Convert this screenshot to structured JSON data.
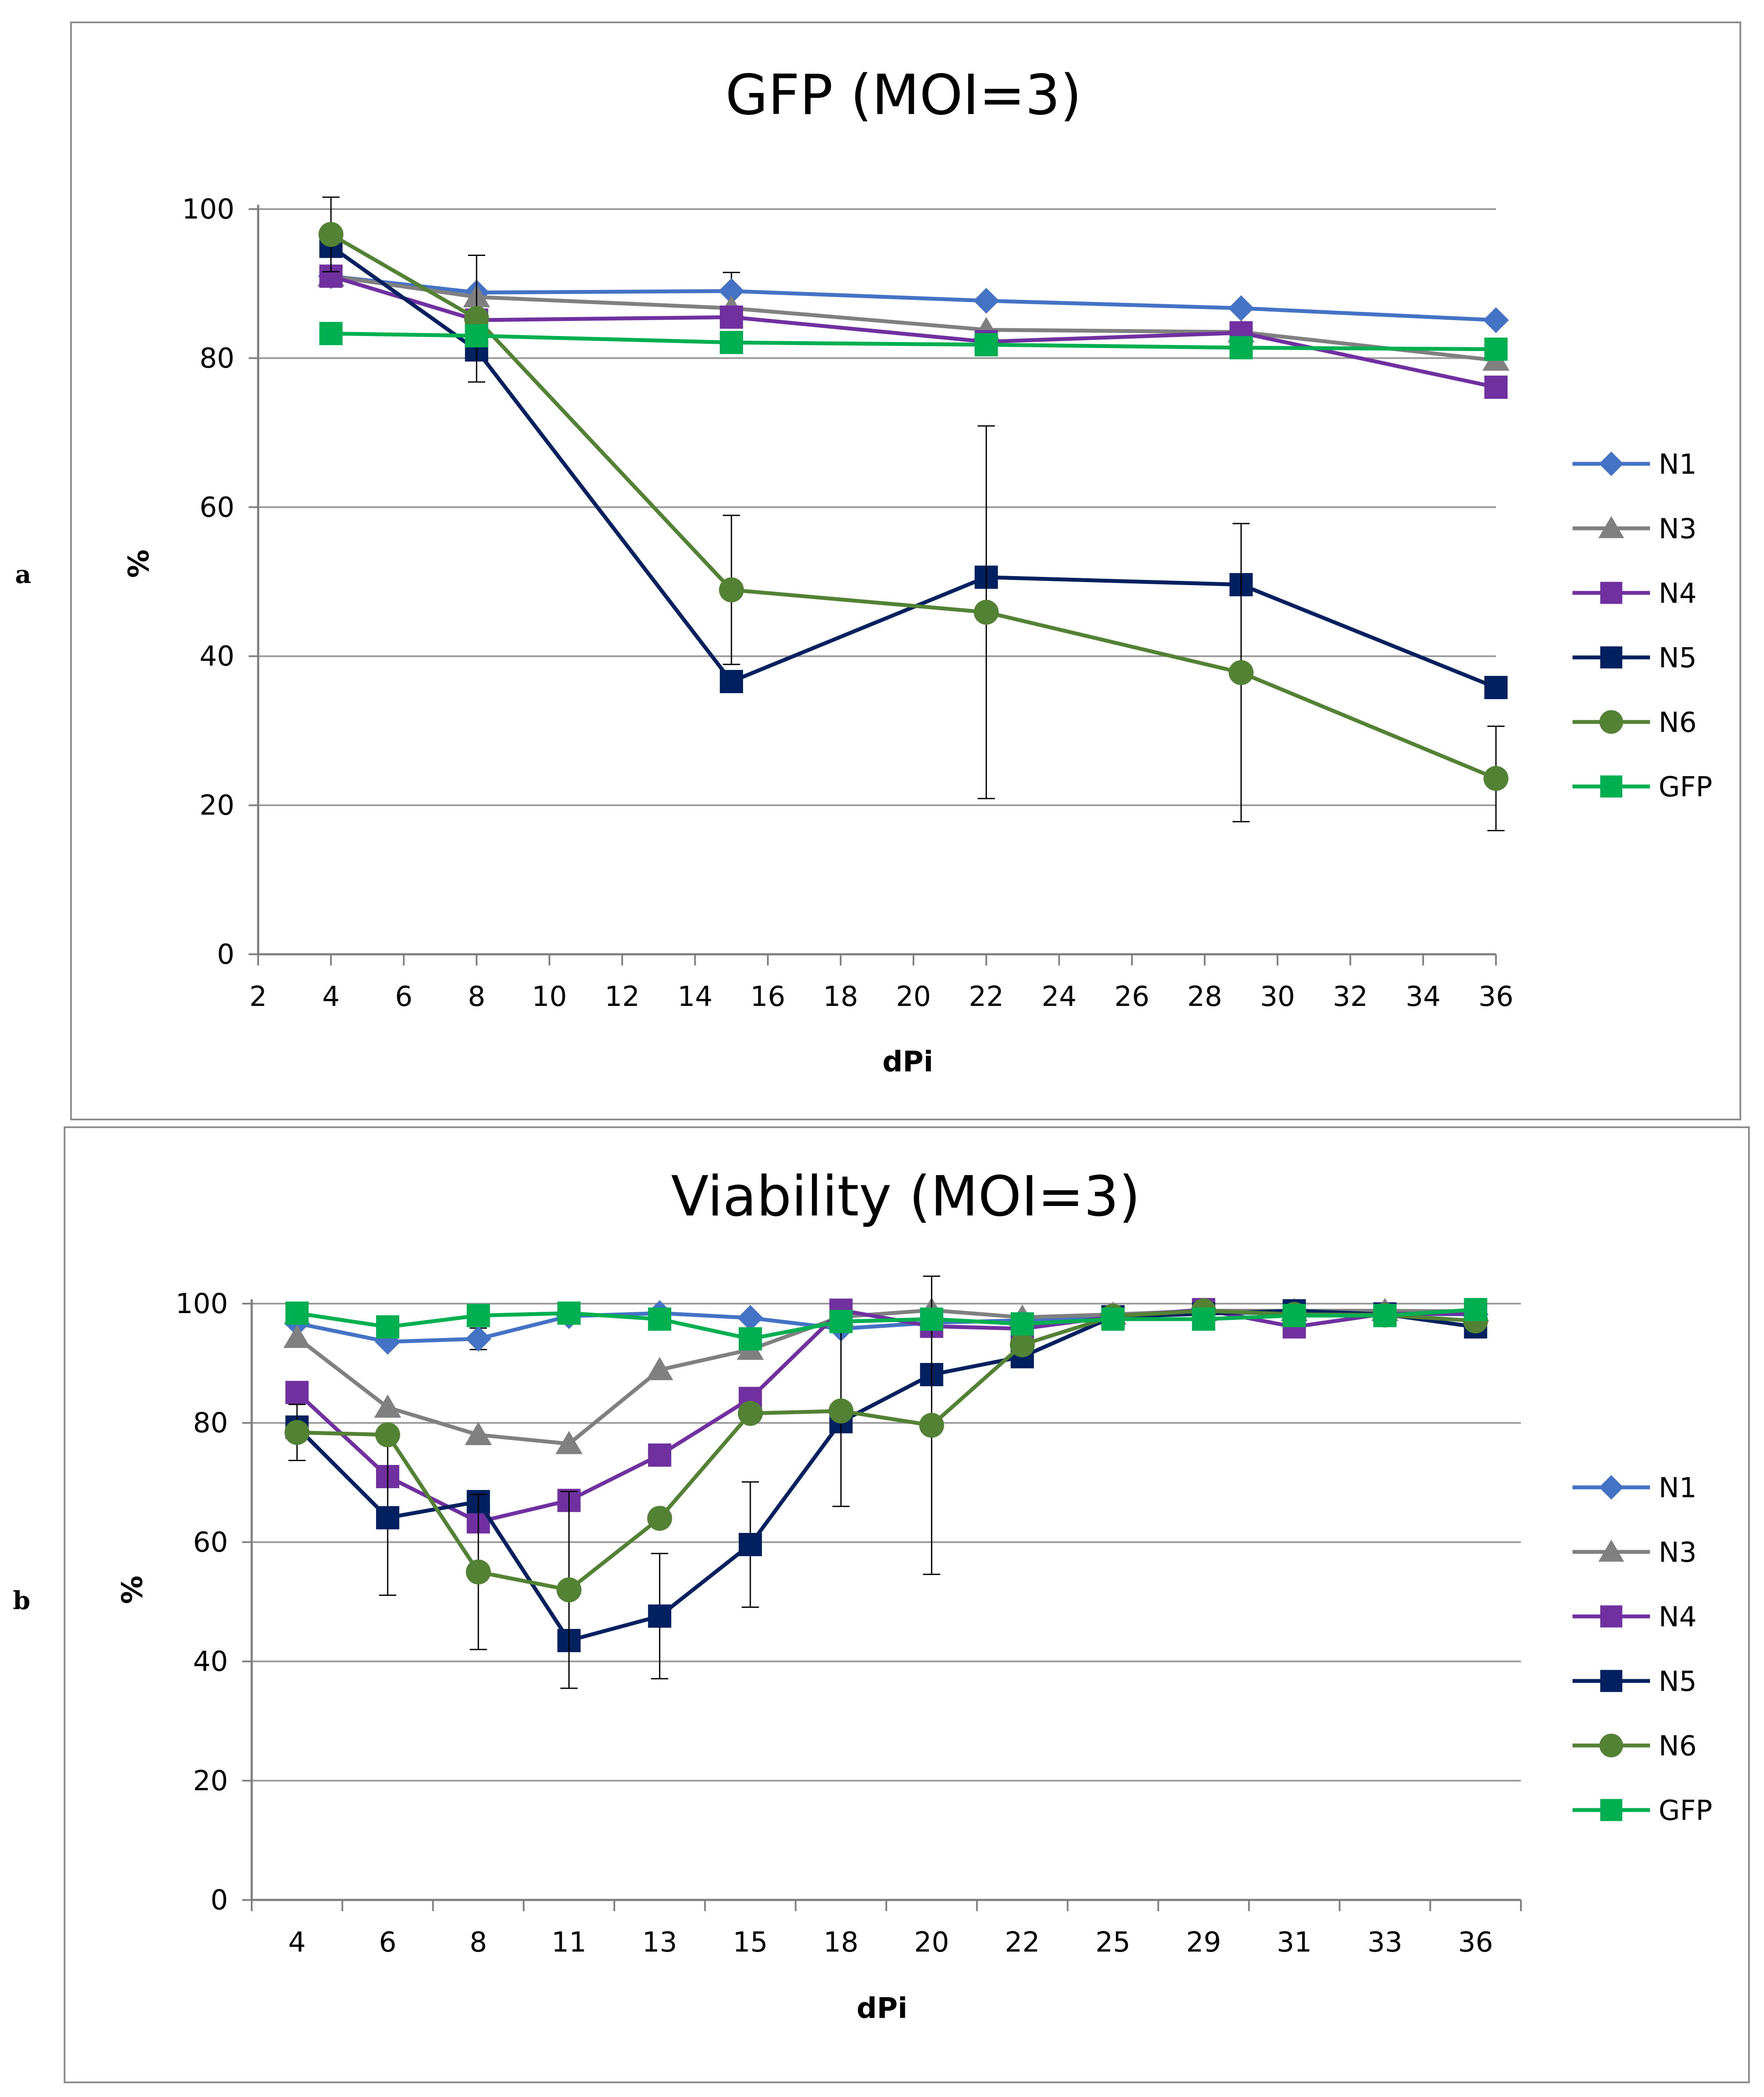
{
  "colors": {
    "N1": "#4472C4",
    "N3": "#808080",
    "N4": "#7030A0",
    "N5": "#002060",
    "N6": "#548235",
    "GFP": "#00B050",
    "grid": "#9a9a9a",
    "axis": "#7f7f7f",
    "frame": "#8c8c8c"
  },
  "chart_data": [
    {
      "type": "line",
      "panel_label": "a",
      "title": "GFP (MOI=3)",
      "xlabel": "dPi",
      "ylabel": "%",
      "xlim": [
        2,
        36
      ],
      "ylim": [
        0,
        100
      ],
      "xticks": [
        "2",
        "4",
        "6",
        "8",
        "10",
        "12",
        "14",
        "16",
        "18",
        "20",
        "22",
        "24",
        "26",
        "28",
        "30",
        "32",
        "34",
        "36"
      ],
      "yticks": [
        "0",
        "20",
        "40",
        "60",
        "80",
        "100"
      ],
      "x": [
        4,
        8,
        15,
        22,
        29,
        36
      ],
      "legend_position": "right",
      "series": [
        {
          "name": "N1",
          "marker": "diamond",
          "values": [
            91,
            88.8,
            89,
            87.7,
            86.7,
            85.1
          ],
          "err": [
            0,
            0,
            2.5,
            0,
            0,
            0
          ]
        },
        {
          "name": "N3",
          "marker": "triangle",
          "values": [
            91,
            88.2,
            86.7,
            83.8,
            83.5,
            79.7
          ],
          "err": [
            0,
            0,
            0,
            0,
            0,
            0
          ]
        },
        {
          "name": "N4",
          "marker": "square",
          "values": [
            91,
            85.1,
            85.5,
            82.2,
            83.4,
            76.1
          ],
          "err": [
            0,
            0,
            0,
            0,
            0,
            0
          ]
        },
        {
          "name": "N5",
          "marker": "square",
          "values": [
            95,
            81.1,
            36.6,
            50.6,
            49.6,
            35.8
          ],
          "err": [
            0,
            0,
            0,
            0,
            0,
            0
          ]
        },
        {
          "name": "N6",
          "marker": "circle",
          "values": [
            96.6,
            85.3,
            48.9,
            45.9,
            37.8,
            23.6
          ],
          "err": [
            5,
            8.5,
            10,
            25,
            20,
            7
          ]
        },
        {
          "name": "GFP",
          "marker": "square",
          "values": [
            83.3,
            83,
            82.1,
            81.8,
            81.4,
            81.2
          ],
          "err": [
            0,
            0,
            0,
            0,
            0,
            0
          ]
        }
      ]
    },
    {
      "type": "line",
      "panel_label": "b",
      "title": "Viability (MOI=3)",
      "xlabel": "dPi",
      "ylabel": "%",
      "ylim": [
        0,
        100
      ],
      "categories": [
        "4",
        "6",
        "8",
        "11",
        "13",
        "15",
        "18",
        "20",
        "22",
        "25",
        "29",
        "31",
        "33",
        "36"
      ],
      "yticks": [
        "0",
        "20",
        "40",
        "60",
        "80",
        "100"
      ],
      "legend_position": "right",
      "series": [
        {
          "name": "N1",
          "marker": "diamond",
          "values": [
            96.7,
            93.6,
            94.1,
            97.9,
            98.4,
            97.6,
            95.8,
            96.8,
            97.2,
            97.8,
            98.4,
            98.5,
            98.3,
            98.2
          ],
          "err": [
            0,
            0,
            1.8,
            0,
            0,
            0,
            0,
            0,
            0,
            0,
            0,
            0,
            0,
            0
          ]
        },
        {
          "name": "N3",
          "marker": "triangle",
          "values": [
            94.3,
            82.6,
            78,
            76.5,
            88.9,
            92.3,
            97.8,
            98.9,
            97.7,
            98.2,
            98.8,
            98.8,
            98.8,
            98.7
          ],
          "err": [
            0,
            0,
            0,
            0,
            0,
            0,
            0,
            0,
            0,
            0,
            0,
            0,
            0,
            0
          ]
        },
        {
          "name": "N4",
          "marker": "square",
          "values": [
            85.1,
            71,
            63.4,
            67,
            74.6,
            84.1,
            98.9,
            96.2,
            95.8,
            97.8,
            99,
            96.1,
            98.3,
            98.3
          ],
          "err": [
            0,
            0,
            0,
            0,
            0,
            0,
            0,
            0,
            0,
            0,
            0,
            0,
            0,
            0
          ]
        },
        {
          "name": "N5",
          "marker": "square",
          "values": [
            79.3,
            64.1,
            66.8,
            43.5,
            47.6,
            59.6,
            80.2,
            88.1,
            91.1,
            97.8,
            98.3,
            98.8,
            98.2,
            96.1
          ],
          "err": [
            0,
            13,
            0,
            0,
            10.5,
            10.5,
            0,
            0,
            0,
            0,
            0,
            0,
            0,
            0
          ]
        },
        {
          "name": "N6",
          "marker": "circle",
          "values": [
            78.4,
            78,
            55,
            52,
            64,
            81.6,
            82,
            79.6,
            93.1,
            97.9,
            98.8,
            98.2,
            98.1,
            97.1
          ],
          "err": [
            4.7,
            0,
            13,
            16.5,
            0,
            0,
            16,
            25,
            0,
            0,
            0,
            0,
            0,
            0
          ]
        },
        {
          "name": "GFP",
          "marker": "square",
          "values": [
            98.4,
            96.1,
            98,
            98.4,
            97.4,
            94.1,
            97,
            97.4,
            96.6,
            97.4,
            97.4,
            98,
            98,
            99
          ],
          "err": [
            0,
            0,
            0,
            0,
            0,
            0,
            0,
            0,
            0,
            0,
            0,
            0,
            0,
            0
          ]
        }
      ]
    }
  ]
}
